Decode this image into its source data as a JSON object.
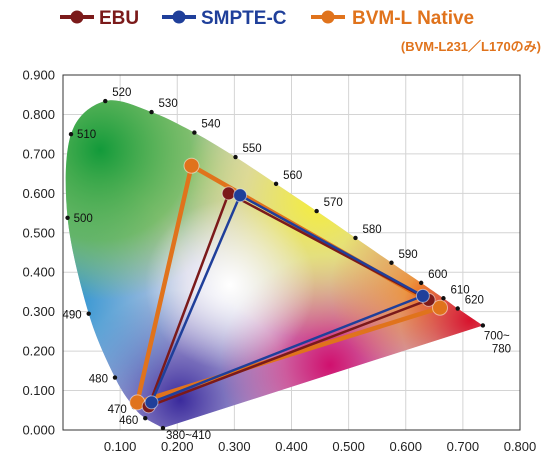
{
  "chart_data": {
    "type": "scatter",
    "title": "",
    "xlabel": "",
    "ylabel": "",
    "xlim": [
      0.0,
      0.8
    ],
    "ylim": [
      0.0,
      0.9
    ],
    "x_ticks": [
      "0.100",
      "0.200",
      "0.300",
      "0.400",
      "0.500",
      "0.600",
      "0.700",
      "0.800"
    ],
    "y_ticks": [
      "0.000",
      "0.100",
      "0.200",
      "0.300",
      "0.400",
      "0.500",
      "0.600",
      "0.700",
      "0.800",
      "0.900"
    ],
    "grid": true,
    "legend_position": "top",
    "series": [
      {
        "name": "EBU",
        "color": "#7b1a1a",
        "points": [
          {
            "x": 0.64,
            "y": 0.33
          },
          {
            "x": 0.29,
            "y": 0.6
          },
          {
            "x": 0.15,
            "y": 0.06
          }
        ]
      },
      {
        "name": "SMPTE-C",
        "color": "#1f3f9a",
        "points": [
          {
            "x": 0.63,
            "y": 0.34
          },
          {
            "x": 0.31,
            "y": 0.595
          },
          {
            "x": 0.155,
            "y": 0.07
          }
        ]
      },
      {
        "name": "BVM-L Native",
        "note": "(BVM-L231／L170のみ)",
        "color": "#e0731c",
        "points": [
          {
            "x": 0.66,
            "y": 0.31
          },
          {
            "x": 0.225,
            "y": 0.67
          },
          {
            "x": 0.13,
            "y": 0.07
          }
        ]
      }
    ],
    "wavelength_labels": [
      {
        "label": "380~410",
        "x": 0.175,
        "y": 0.005
      },
      {
        "label": "460",
        "x": 0.144,
        "y": 0.03
      },
      {
        "label": "470",
        "x": 0.124,
        "y": 0.058
      },
      {
        "label": "480",
        "x": 0.091,
        "y": 0.133
      },
      {
        "label": "490",
        "x": 0.045,
        "y": 0.295
      },
      {
        "label": "500",
        "x": 0.008,
        "y": 0.538
      },
      {
        "label": "510",
        "x": 0.014,
        "y": 0.75
      },
      {
        "label": "520",
        "x": 0.074,
        "y": 0.834
      },
      {
        "label": "530",
        "x": 0.155,
        "y": 0.806
      },
      {
        "label": "540",
        "x": 0.23,
        "y": 0.754
      },
      {
        "label": "550",
        "x": 0.302,
        "y": 0.692
      },
      {
        "label": "560",
        "x": 0.373,
        "y": 0.624
      },
      {
        "label": "570",
        "x": 0.444,
        "y": 0.555
      },
      {
        "label": "580",
        "x": 0.512,
        "y": 0.487
      },
      {
        "label": "590",
        "x": 0.575,
        "y": 0.424
      },
      {
        "label": "600",
        "x": 0.627,
        "y": 0.373
      },
      {
        "label": "610",
        "x": 0.666,
        "y": 0.334
      },
      {
        "label": "620",
        "x": 0.691,
        "y": 0.308
      },
      {
        "label": "700~\n780",
        "x": 0.735,
        "y": 0.265
      }
    ]
  }
}
